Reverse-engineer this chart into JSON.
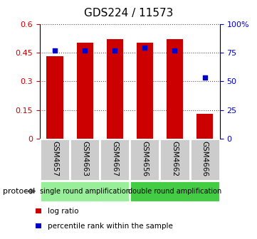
{
  "title": "GDS224 / 11573",
  "categories": [
    "GSM4657",
    "GSM4663",
    "GSM4667",
    "GSM4656",
    "GSM4662",
    "GSM4666"
  ],
  "log_ratio": [
    0.43,
    0.5,
    0.52,
    0.5,
    0.52,
    0.13
  ],
  "percentile_rank": [
    77,
    77,
    77,
    79,
    77,
    53
  ],
  "ylim_left": [
    0,
    0.6
  ],
  "ylim_right": [
    0,
    100
  ],
  "yticks_left": [
    0,
    0.15,
    0.3,
    0.45,
    0.6
  ],
  "yticks_right": [
    0,
    25,
    50,
    75,
    100
  ],
  "ytick_labels_left": [
    "0",
    "0.15",
    "0.3",
    "0.45",
    "0.6"
  ],
  "ytick_labels_right": [
    "0",
    "25",
    "50",
    "75",
    "100%"
  ],
  "bar_color": "#cc0000",
  "marker_color": "#0000cc",
  "protocol_groups": [
    {
      "label": "single round amplification",
      "start": 0,
      "end": 3,
      "color": "#99ee99"
    },
    {
      "label": "double round amplification",
      "start": 3,
      "end": 6,
      "color": "#44cc44"
    }
  ],
  "protocol_label": "protocol",
  "legend_items": [
    {
      "label": "log ratio",
      "color": "#cc0000"
    },
    {
      "label": "percentile rank within the sample",
      "color": "#0000cc"
    }
  ],
  "tick_color_left": "#cc0000",
  "tick_color_right": "#0000cc",
  "grid_color": "#555555",
  "bar_width": 0.55,
  "bg_color": "#ffffff"
}
